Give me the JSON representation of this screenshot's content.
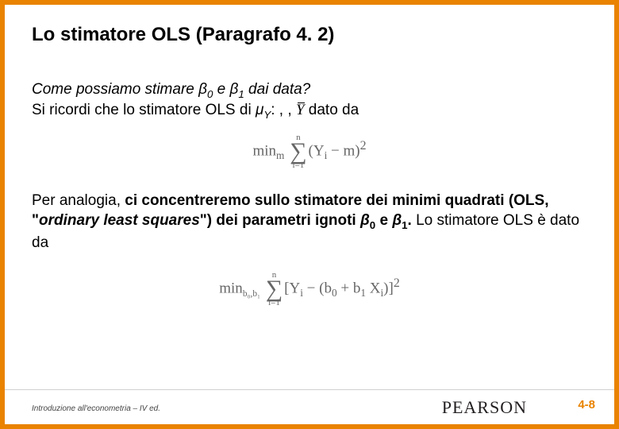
{
  "title": "Lo stimatore OLS (Paragrafo 4. 2)",
  "q_prefix": "Come possiamo stimare ",
  "q_b0": "β",
  "q_b0s": "0",
  "q_mid1": " e ",
  "q_b1": "β",
  "q_b1s": "1",
  "q_suffix": " dai data?",
  "l2_a": "Si ricordi che lo stimatore OLS di ",
  "l2_mu": "μ",
  "l2_muy": "Y",
  "l2_b": ": ,     , ",
  "l2_ybar": "Y",
  "l2_c": " dato da",
  "f1_min": "min",
  "f1_sub": "m",
  "f1_top": "n",
  "f1_bot": "i=1",
  "f1_body_a": "(Y",
  "f1_body_b": " − m)",
  "f1_body_i": "i",
  "f1_sq": "2",
  "p_a": "Per analogia, ",
  "p_b": "ci concentreremo sullo stimatore dei minimi quadrati (OLS, \"",
  "p_c": "ordinary least squares",
  "p_d": "\") dei parametri ignoti ",
  "p_b0": "β",
  "p_b0s": "0",
  "p_e": " e ",
  "p_b1": "β",
  "p_b1s": "1",
  "p_f": ".",
  "p_g": " Lo stimatore OLS è dato da",
  "f2_min": "min",
  "f2_sub": "b₀,b₁",
  "f2_top": "n",
  "f2_bot": "i=1",
  "f2_a": "[Y",
  "f2_i": "i",
  "f2_b": " − (b",
  "f2_0": "0",
  "f2_c": " + b",
  "f2_1": "1",
  "f2_d": " X",
  "f2_e": ")]",
  "f2_sq": "2",
  "footer_left": "Introduzione all'econometria – IV ed.",
  "footer_logo": "PEARSON",
  "page_num": "4-8",
  "colors": {
    "accent": "#e98300",
    "text": "#000000",
    "formula": "#666666",
    "bg": "#ffffff"
  }
}
